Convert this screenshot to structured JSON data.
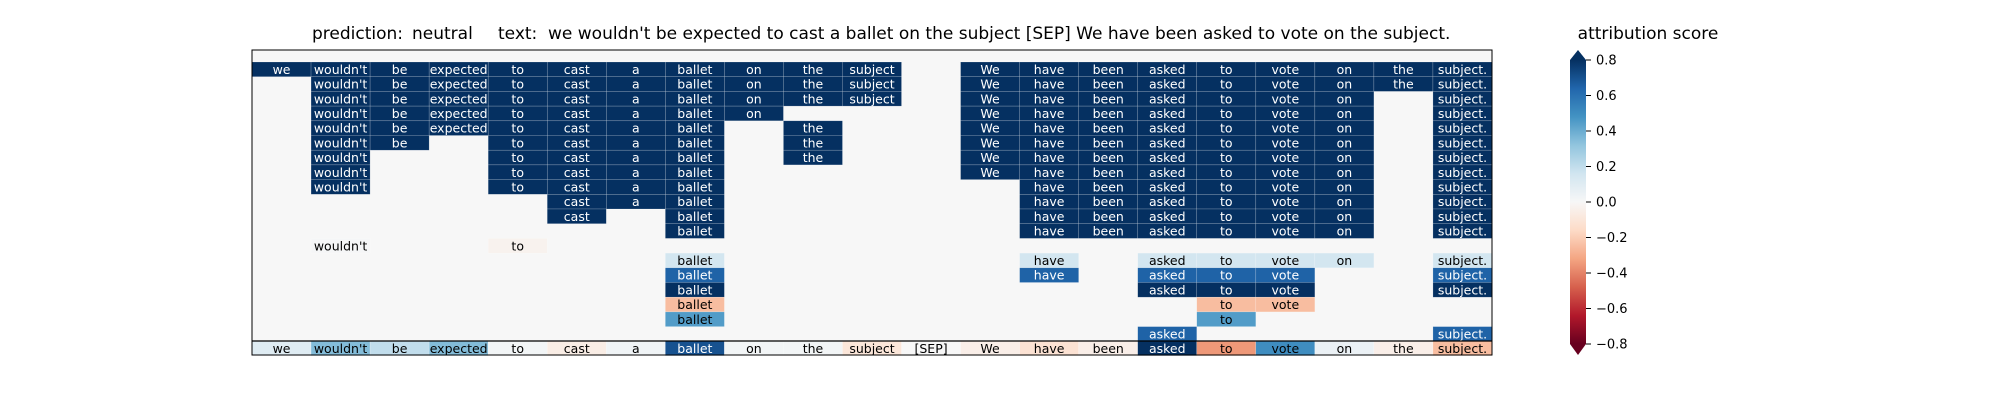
{
  "chart_data": {
    "type": "heatmap",
    "prediction_label": "prediction:",
    "prediction": "neutral",
    "text_label": "text:",
    "text": "we wouldn't be expected to cast a ballet on the subject [SEP] We have been asked to vote on the subject.",
    "colorbar_title": "attribution score",
    "colorbar_range": [
      -0.8,
      0.8
    ],
    "colorbar_ticks": [
      0.8,
      0.6,
      0.4,
      0.2,
      0.0,
      -0.2,
      -0.4,
      -0.6,
      -0.8
    ],
    "colorbar_tick_labels": [
      "0.8",
      "0.6",
      "0.4",
      "0.2",
      "0.0",
      "−0.2",
      "−0.4",
      "−0.6",
      "−0.8"
    ],
    "tokens": [
      "we",
      "wouldn't",
      "be",
      "expected",
      "to",
      "cast",
      "a",
      "ballet",
      "on",
      "the",
      "subject",
      "[SEP]",
      "We",
      "have",
      "been",
      "asked",
      "to",
      "vote",
      "on",
      "the",
      "subject."
    ],
    "rows": [
      [
        0.85,
        0.85,
        0.85,
        0.85,
        0.85,
        0.85,
        0.85,
        0.85,
        0.85,
        0.85,
        0.85,
        null,
        0.85,
        0.85,
        0.85,
        0.85,
        0.85,
        0.85,
        0.85,
        0.85,
        0.85
      ],
      [
        null,
        0.85,
        0.85,
        0.85,
        0.85,
        0.85,
        0.85,
        0.85,
        0.85,
        0.85,
        0.85,
        null,
        0.85,
        0.85,
        0.85,
        0.85,
        0.85,
        0.85,
        0.85,
        0.85,
        0.85
      ],
      [
        null,
        0.85,
        0.85,
        0.85,
        0.85,
        0.85,
        0.85,
        0.85,
        0.85,
        0.85,
        0.85,
        null,
        0.85,
        0.85,
        0.85,
        0.85,
        0.85,
        0.85,
        0.85,
        null,
        0.85
      ],
      [
        null,
        0.85,
        0.85,
        0.85,
        0.85,
        0.85,
        0.85,
        0.85,
        0.85,
        null,
        null,
        null,
        0.85,
        0.85,
        0.85,
        0.85,
        0.85,
        0.85,
        0.85,
        null,
        0.85
      ],
      [
        null,
        0.85,
        0.85,
        0.85,
        0.85,
        0.85,
        0.85,
        0.85,
        null,
        0.85,
        null,
        null,
        0.85,
        0.85,
        0.85,
        0.85,
        0.85,
        0.85,
        0.85,
        null,
        0.85
      ],
      [
        null,
        0.85,
        0.85,
        null,
        0.85,
        0.85,
        0.85,
        0.85,
        null,
        0.85,
        null,
        null,
        0.85,
        0.85,
        0.85,
        0.85,
        0.85,
        0.85,
        0.85,
        null,
        0.85
      ],
      [
        null,
        0.85,
        null,
        null,
        0.85,
        0.85,
        0.85,
        0.85,
        null,
        0.85,
        null,
        null,
        0.85,
        0.85,
        0.85,
        0.85,
        0.85,
        0.85,
        0.85,
        null,
        0.85
      ],
      [
        null,
        0.85,
        null,
        null,
        0.85,
        0.85,
        0.85,
        0.85,
        null,
        null,
        null,
        null,
        0.85,
        0.85,
        0.85,
        0.85,
        0.85,
        0.85,
        0.85,
        null,
        0.85
      ],
      [
        null,
        0.85,
        null,
        null,
        0.85,
        0.85,
        0.85,
        0.85,
        null,
        null,
        null,
        null,
        null,
        0.85,
        0.85,
        0.85,
        0.85,
        0.85,
        0.85,
        null,
        0.85
      ],
      [
        null,
        null,
        null,
        null,
        null,
        0.85,
        0.85,
        0.85,
        null,
        null,
        null,
        null,
        null,
        0.85,
        0.85,
        0.85,
        0.85,
        0.85,
        0.85,
        null,
        0.85
      ],
      [
        null,
        null,
        null,
        null,
        null,
        0.85,
        null,
        0.85,
        null,
        null,
        null,
        null,
        null,
        0.85,
        0.85,
        0.85,
        0.85,
        0.85,
        0.85,
        null,
        0.85
      ],
      [
        null,
        null,
        null,
        null,
        null,
        null,
        null,
        0.85,
        null,
        null,
        null,
        null,
        null,
        0.85,
        0.85,
        0.85,
        0.85,
        0.85,
        0.85,
        null,
        0.85
      ],
      [
        null,
        0.01,
        null,
        null,
        -0.03,
        null,
        null,
        null,
        null,
        null,
        null,
        null,
        null,
        null,
        null,
        null,
        null,
        null,
        null,
        null,
        null
      ],
      [
        null,
        null,
        null,
        null,
        null,
        null,
        null,
        0.15,
        null,
        null,
        null,
        null,
        null,
        0.15,
        null,
        0.15,
        0.15,
        0.15,
        0.15,
        null,
        0.15
      ],
      [
        null,
        null,
        null,
        null,
        null,
        null,
        null,
        0.65,
        null,
        null,
        null,
        null,
        null,
        0.65,
        null,
        0.65,
        0.65,
        0.65,
        null,
        null,
        0.65
      ],
      [
        null,
        null,
        null,
        null,
        null,
        null,
        null,
        0.85,
        null,
        null,
        null,
        null,
        null,
        null,
        null,
        0.85,
        0.85,
        0.85,
        null,
        null,
        0.85
      ],
      [
        null,
        null,
        null,
        null,
        null,
        null,
        null,
        -0.25,
        null,
        null,
        null,
        null,
        null,
        null,
        null,
        null,
        -0.25,
        -0.25,
        null,
        null,
        null
      ],
      [
        null,
        null,
        null,
        null,
        null,
        null,
        null,
        0.45,
        null,
        null,
        null,
        null,
        null,
        null,
        null,
        null,
        0.45,
        null,
        null,
        null,
        null
      ],
      [
        null,
        null,
        null,
        null,
        null,
        null,
        null,
        null,
        null,
        null,
        null,
        null,
        null,
        null,
        null,
        0.65,
        null,
        null,
        null,
        null,
        0.65
      ],
      [
        0.1,
        0.35,
        0.2,
        0.35,
        0.02,
        -0.06,
        0.03,
        0.7,
        0.02,
        0.02,
        -0.1,
        0.0,
        -0.05,
        -0.12,
        -0.05,
        0.85,
        -0.35,
        0.5,
        0.05,
        -0.05,
        -0.25
      ]
    ]
  }
}
